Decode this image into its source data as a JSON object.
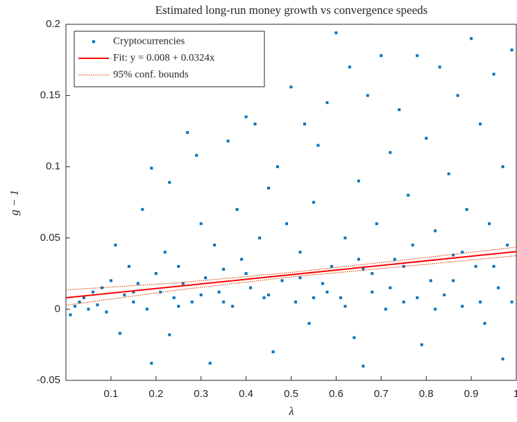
{
  "chart_data": {
    "type": "scatter",
    "title": "Estimated long-run money growth vs convergence speeds",
    "x_label": "λ",
    "y_label": "g − 1",
    "xlim": [
      0,
      1
    ],
    "ylim": [
      -0.05,
      0.2
    ],
    "xticks": [
      0.1,
      0.2,
      0.3,
      0.4,
      0.5,
      0.6,
      0.7,
      0.8,
      0.9,
      1
    ],
    "yticks": [
      {
        "value": -0.05,
        "label": "-0.05"
      },
      0,
      0.05,
      0.1,
      0.15,
      0.2
    ],
    "legend": "upper-left",
    "series": [
      {
        "name": "Cryptocurrencies",
        "color": "#0072bd",
        "x": [
          0.01,
          0.02,
          0.03,
          0.04,
          0.05,
          0.06,
          0.07,
          0.08,
          0.09,
          0.1,
          0.11,
          0.12,
          0.13,
          0.14,
          0.15,
          0.16,
          0.17,
          0.18,
          0.19,
          0.19,
          0.2,
          0.21,
          0.22,
          0.23,
          0.23,
          0.24,
          0.25,
          0.26,
          0.27,
          0.28,
          0.29,
          0.3,
          0.31,
          0.32,
          0.33,
          0.34,
          0.35,
          0.36,
          0.37,
          0.38,
          0.39,
          0.4,
          0.41,
          0.42,
          0.43,
          0.44,
          0.45,
          0.46,
          0.47,
          0.48,
          0.49,
          0.5,
          0.51,
          0.52,
          0.53,
          0.54,
          0.55,
          0.56,
          0.57,
          0.58,
          0.59,
          0.6,
          0.61,
          0.62,
          0.63,
          0.64,
          0.65,
          0.66,
          0.66,
          0.67,
          0.68,
          0.69,
          0.7,
          0.71,
          0.72,
          0.73,
          0.74,
          0.75,
          0.76,
          0.77,
          0.78,
          0.79,
          0.8,
          0.81,
          0.82,
          0.83,
          0.84,
          0.85,
          0.86,
          0.87,
          0.88,
          0.89,
          0.9,
          0.91,
          0.92,
          0.93,
          0.94,
          0.95,
          0.96,
          0.97,
          0.97,
          0.98,
          0.99,
          0.99,
          0.35,
          0.45,
          0.55,
          0.62,
          0.68,
          0.72,
          0.78,
          0.82,
          0.86,
          0.92,
          0.95,
          0.52,
          0.58,
          0.4,
          0.3,
          0.25,
          0.15,
          0.65,
          0.75,
          0.88
        ],
        "values": [
          -0.004,
          0.002,
          0.005,
          0.008,
          0.0,
          0.012,
          0.003,
          0.015,
          -0.002,
          0.02,
          0.045,
          -0.017,
          0.01,
          0.03,
          0.005,
          0.018,
          0.07,
          0.0,
          0.099,
          -0.038,
          0.025,
          0.012,
          0.04,
          0.089,
          -0.018,
          0.008,
          0.03,
          0.018,
          0.124,
          0.005,
          0.108,
          0.06,
          0.022,
          -0.038,
          0.045,
          0.012,
          0.028,
          0.118,
          0.002,
          0.07,
          0.035,
          0.135,
          0.015,
          0.13,
          0.05,
          0.008,
          0.085,
          -0.03,
          0.1,
          0.02,
          0.06,
          0.156,
          0.005,
          0.04,
          0.13,
          -0.01,
          0.075,
          0.115,
          0.018,
          0.145,
          0.03,
          0.194,
          0.008,
          0.05,
          0.17,
          -0.02,
          0.09,
          0.028,
          -0.04,
          0.15,
          0.012,
          0.06,
          0.178,
          0.0,
          0.11,
          0.035,
          0.14,
          0.005,
          0.08,
          0.045,
          0.178,
          -0.025,
          0.12,
          0.02,
          0.055,
          0.17,
          0.01,
          0.095,
          0.038,
          0.15,
          0.002,
          0.07,
          0.19,
          0.03,
          0.13,
          -0.01,
          0.06,
          0.165,
          0.015,
          0.1,
          -0.035,
          0.045,
          0.182,
          0.005,
          0.005,
          0.01,
          0.008,
          0.002,
          0.025,
          0.015,
          0.008,
          0.0,
          0.02,
          0.005,
          0.03,
          0.022,
          0.012,
          0.025,
          0.01,
          0.002,
          0.012,
          0.035,
          0.03,
          0.04
        ]
      },
      {
        "name": "Fit: y = 0.008 + 0.0324x",
        "color": "#ff0000",
        "x": [
          0,
          1
        ],
        "values": [
          0.008,
          0.0404
        ]
      },
      {
        "name": "95% conf. bounds",
        "color": "#d95319",
        "x": [
          0,
          0.25,
          0.5,
          0.75,
          1
        ],
        "upper": [
          0.0135,
          0.0185,
          0.0258,
          0.0345,
          0.0435
        ],
        "lower": [
          0.0028,
          0.0135,
          0.0226,
          0.03,
          0.0375
        ]
      }
    ]
  }
}
